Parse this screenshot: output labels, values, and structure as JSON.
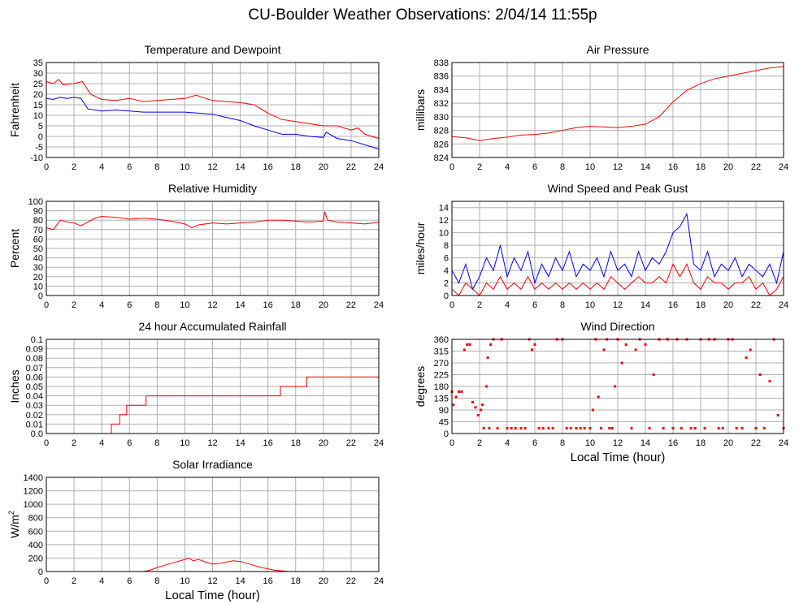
{
  "page": {
    "title": "CU-Boulder Weather Observations: 2/04/14 11:55p"
  },
  "chart_data": [
    {
      "id": "temp",
      "type": "line",
      "title": "Temperature and Dewpoint",
      "xlabel": "",
      "ylabel": "Fahrenheit",
      "xlim": [
        0,
        24
      ],
      "ylim": [
        -10,
        35
      ],
      "xticks": [
        0,
        2,
        4,
        6,
        8,
        10,
        12,
        14,
        16,
        18,
        20,
        22,
        24
      ],
      "yticks": [
        -10,
        -5,
        0,
        5,
        10,
        15,
        20,
        25,
        30,
        35
      ],
      "grid": true,
      "series": [
        {
          "color": "#ff0000",
          "x": [
            0,
            0.5,
            0.9,
            1.2,
            2,
            2.6,
            3.2,
            4,
            5,
            6,
            7,
            8,
            9,
            10,
            10.8,
            11.5,
            12,
            13,
            14,
            15,
            16,
            17,
            18,
            19,
            20,
            21,
            22,
            22.5,
            23,
            23.5,
            24
          ],
          "y": [
            26,
            25,
            27,
            24.5,
            25,
            26,
            20,
            17.5,
            17,
            18,
            16.5,
            17,
            17.5,
            18,
            19.5,
            18,
            17,
            16.5,
            16,
            15,
            11,
            8,
            7,
            6,
            5,
            5,
            3,
            4,
            1,
            0,
            -1
          ]
        },
        {
          "color": "#0000ff",
          "x": [
            0,
            0.5,
            1,
            1.5,
            2,
            2.5,
            3,
            4,
            5,
            6,
            7,
            8,
            9,
            10,
            11,
            12,
            13,
            14,
            15,
            16,
            17,
            18,
            19,
            20,
            20.2,
            21,
            22,
            22.5,
            23,
            23.5,
            24
          ],
          "y": [
            18,
            17.5,
            18.5,
            18,
            18.5,
            18,
            13,
            12,
            12.5,
            12,
            11.5,
            11.5,
            11.5,
            11.5,
            11,
            10.5,
            9,
            7.5,
            5,
            3,
            1,
            1,
            0,
            -0.5,
            2,
            -1,
            -2,
            -3,
            -4,
            -5,
            -6
          ]
        }
      ]
    },
    {
      "id": "pres",
      "type": "line",
      "title": "Air Pressure",
      "xlabel": "",
      "ylabel": "millibars",
      "xlim": [
        0,
        24
      ],
      "ylim": [
        824,
        838
      ],
      "xticks": [
        0,
        2,
        4,
        6,
        8,
        10,
        12,
        14,
        16,
        18,
        20,
        22,
        24
      ],
      "yticks": [
        824,
        826,
        828,
        830,
        832,
        834,
        836,
        838
      ],
      "grid": true,
      "series": [
        {
          "color": "#ff0000",
          "x": [
            0,
            1,
            2,
            3,
            4,
            5,
            6,
            7,
            8,
            9,
            10,
            11,
            12,
            13,
            14,
            15,
            16,
            17,
            18,
            19,
            20,
            21,
            22,
            23,
            24
          ],
          "y": [
            827.1,
            826.9,
            826.5,
            826.8,
            827.0,
            827.3,
            827.4,
            827.6,
            828.0,
            828.4,
            828.6,
            828.5,
            828.4,
            828.6,
            828.9,
            830.0,
            832.2,
            833.9,
            834.9,
            835.6,
            836.0,
            836.4,
            836.8,
            837.2,
            837.4
          ]
        }
      ]
    },
    {
      "id": "rh",
      "type": "line",
      "title": "Relative Humidity",
      "xlabel": "",
      "ylabel": "Percent",
      "xlim": [
        0,
        24
      ],
      "ylim": [
        0,
        100
      ],
      "xticks": [
        0,
        2,
        4,
        6,
        8,
        10,
        12,
        14,
        16,
        18,
        20,
        22,
        24
      ],
      "yticks": [
        0,
        10,
        20,
        30,
        40,
        50,
        60,
        70,
        80,
        90,
        100
      ],
      "grid": true,
      "series": [
        {
          "color": "#ff0000",
          "x": [
            0,
            0.5,
            1,
            1.5,
            2,
            2.5,
            3,
            3.5,
            4,
            5,
            6,
            7,
            8,
            9,
            10,
            10.5,
            11,
            12,
            13,
            14,
            15,
            16,
            17,
            18,
            19,
            20,
            20.1,
            20.3,
            21,
            22,
            23,
            24
          ],
          "y": [
            72,
            70,
            80,
            78,
            77,
            74,
            78,
            82,
            84,
            83,
            81,
            82,
            81,
            79,
            76,
            72,
            75,
            77,
            76,
            77,
            78,
            80,
            80,
            79,
            78,
            79,
            89,
            80,
            78,
            77,
            76,
            78
          ]
        }
      ]
    },
    {
      "id": "wind",
      "type": "line",
      "title": "Wind Speed and Peak Gust",
      "xlabel": "",
      "ylabel": "miles/hour",
      "xlim": [
        0,
        24
      ],
      "ylim": [
        0,
        15
      ],
      "xticks": [
        0,
        2,
        4,
        6,
        8,
        10,
        12,
        14,
        16,
        18,
        20,
        22,
        24
      ],
      "yticks": [
        0,
        2,
        4,
        6,
        8,
        10,
        12,
        14
      ],
      "grid": true,
      "series": [
        {
          "color": "#0000ff",
          "x": [
            0,
            0.5,
            1,
            1.5,
            2,
            2.5,
            3,
            3.5,
            4,
            4.5,
            5,
            5.5,
            6,
            6.5,
            7,
            7.5,
            8,
            8.5,
            9,
            9.5,
            10,
            10.5,
            11,
            11.5,
            12,
            12.5,
            13,
            13.5,
            14,
            14.5,
            15,
            15.5,
            16,
            16.5,
            17,
            17.5,
            18,
            18.5,
            19,
            19.5,
            20,
            20.5,
            21,
            21.5,
            22,
            22.5,
            23,
            23.5,
            24
          ],
          "y": [
            4,
            2,
            5,
            1,
            3,
            6,
            4,
            8,
            3,
            6,
            4,
            7,
            2,
            5,
            3,
            6,
            4,
            7,
            3,
            5,
            4,
            6,
            3,
            7,
            4,
            5,
            3,
            7,
            4,
            6,
            5,
            7,
            10,
            11,
            13,
            5,
            4,
            7,
            3,
            5,
            4,
            6,
            3,
            5,
            4,
            3,
            5,
            2,
            7
          ]
        },
        {
          "color": "#ff0000",
          "x": [
            0,
            0.5,
            1,
            1.5,
            2,
            2.5,
            3,
            3.5,
            4,
            4.5,
            5,
            5.5,
            6,
            6.5,
            7,
            7.5,
            8,
            8.5,
            9,
            9.5,
            10,
            10.5,
            11,
            11.5,
            12,
            12.5,
            13,
            13.5,
            14,
            14.5,
            15,
            15.5,
            16,
            16.5,
            17,
            17.5,
            18,
            18.5,
            19,
            19.5,
            20,
            20.5,
            21,
            21.5,
            22,
            22.5,
            23,
            23.5,
            24
          ],
          "y": [
            1,
            0,
            2,
            1,
            0,
            2,
            1,
            3,
            1,
            2,
            1,
            3,
            1,
            2,
            1,
            2,
            1,
            2,
            1,
            2,
            1,
            2,
            1,
            3,
            2,
            1,
            2,
            3,
            2,
            2,
            3,
            2,
            5,
            3,
            5,
            2,
            1,
            3,
            2,
            2,
            1,
            2,
            2,
            3,
            1,
            2,
            0,
            1,
            3
          ]
        }
      ]
    },
    {
      "id": "rain",
      "type": "line",
      "title": "24 hour Accumulated Rainfall",
      "xlabel": "",
      "ylabel": "Inches",
      "xlim": [
        0,
        24
      ],
      "ylim": [
        0,
        0.1
      ],
      "xticks": [
        0,
        2,
        4,
        6,
        8,
        10,
        12,
        14,
        16,
        18,
        20,
        22,
        24
      ],
      "yticks": [
        0,
        0.01,
        0.02,
        0.03,
        0.04,
        0.05,
        0.06,
        0.07,
        0.08,
        0.09,
        0.1
      ],
      "ytick_labels": [
        "0.0",
        "0.01",
        "0.02",
        "0.03",
        "0.04",
        "0.05",
        "0.06",
        "0.07",
        "0.08",
        "0.09",
        "0.1"
      ],
      "grid": true,
      "series": [
        {
          "color": "#ff0000",
          "step": true,
          "x": [
            0,
            4.7,
            4.9,
            5.3,
            5.8,
            7.2,
            16.9,
            18.8,
            24
          ],
          "y": [
            0,
            0.01,
            0.01,
            0.02,
            0.03,
            0.04,
            0.05,
            0.06,
            0.06
          ]
        }
      ]
    },
    {
      "id": "wdir",
      "type": "scatter",
      "title": "Wind Direction",
      "xlabel": "Local Time (hour)",
      "ylabel": "degrees",
      "xlim": [
        0,
        24
      ],
      "ylim": [
        0,
        360
      ],
      "xticks": [
        0,
        2,
        4,
        6,
        8,
        10,
        12,
        14,
        16,
        18,
        20,
        22,
        24
      ],
      "yticks": [
        0,
        45,
        90,
        135,
        180,
        225,
        270,
        315,
        360
      ],
      "grid": true,
      "series": [
        {
          "color": "#ff0000",
          "x": [
            0,
            0.1,
            0.3,
            0.5,
            0.7,
            0.9,
            1.1,
            1.3,
            1.5,
            1.7,
            1.9,
            2.1,
            2.2,
            2.3,
            2.5,
            2.6,
            2.7,
            2.8,
            3,
            3.3,
            3.6,
            4,
            4.3,
            4.6,
            5,
            5.3,
            5.6,
            5.8,
            6,
            6.3,
            6.6,
            7,
            7.3,
            7.6,
            8,
            8.3,
            8.6,
            9,
            9.3,
            9.6,
            10,
            10.2,
            10.4,
            10.6,
            10.8,
            11,
            11.2,
            11.4,
            11.6,
            11.8,
            12,
            12.3,
            12.6,
            13,
            13.3,
            13.6,
            14,
            14.3,
            14.6,
            15,
            15.3,
            15.6,
            16,
            16.3,
            16.6,
            17,
            17.3,
            17.6,
            18,
            18.3,
            18.6,
            19,
            19.3,
            19.6,
            20,
            20.3,
            20.6,
            21,
            21.3,
            21.6,
            22,
            22.3,
            22.6,
            23,
            23.3,
            23.6,
            24
          ],
          "y": [
            160,
            110,
            140,
            160,
            160,
            320,
            340,
            340,
            120,
            100,
            70,
            90,
            110,
            20,
            180,
            290,
            20,
            340,
            360,
            20,
            360,
            20,
            20,
            20,
            20,
            20,
            360,
            320,
            340,
            20,
            20,
            20,
            20,
            360,
            360,
            20,
            20,
            20,
            20,
            20,
            20,
            90,
            360,
            140,
            20,
            320,
            360,
            20,
            20,
            180,
            360,
            270,
            340,
            20,
            320,
            360,
            340,
            20,
            225,
            360,
            20,
            360,
            20,
            360,
            20,
            360,
            20,
            20,
            360,
            20,
            360,
            360,
            20,
            20,
            360,
            360,
            20,
            20,
            290,
            320,
            20,
            225,
            20,
            200,
            360,
            70,
            20
          ]
        }
      ]
    },
    {
      "id": "solar",
      "type": "line",
      "title": "Solar Irradiance",
      "xlabel": "Local Time (hour)",
      "ylabel": "W/m",
      "ylabel_sup": "2",
      "xlim": [
        0,
        24
      ],
      "ylim": [
        0,
        1400
      ],
      "xticks": [
        0,
        2,
        4,
        6,
        8,
        10,
        12,
        14,
        16,
        18,
        20,
        22,
        24
      ],
      "yticks": [
        0,
        200,
        400,
        600,
        800,
        1000,
        1200,
        1400
      ],
      "grid": true,
      "series": [
        {
          "color": "#ff0000",
          "x": [
            0,
            7,
            7.5,
            8,
            8.5,
            9,
            9.5,
            10,
            10.3,
            10.6,
            11,
            11.5,
            12,
            12.5,
            13,
            13.5,
            14,
            14.5,
            15,
            15.5,
            16,
            16.5,
            17,
            17.5,
            24
          ],
          "y": [
            0,
            0,
            20,
            60,
            90,
            120,
            150,
            180,
            200,
            160,
            180,
            140,
            110,
            120,
            140,
            160,
            150,
            120,
            90,
            60,
            40,
            20,
            10,
            0,
            0
          ]
        }
      ]
    }
  ]
}
